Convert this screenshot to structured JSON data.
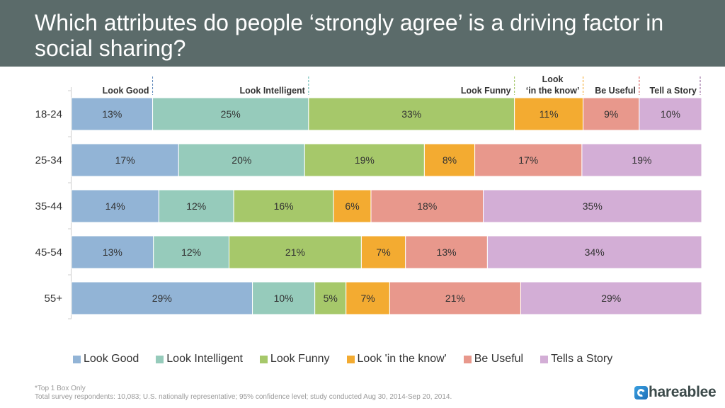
{
  "title": "Which attributes do people ‘strongly agree’ is a driving factor in social sharing?",
  "chart_data": {
    "type": "bar",
    "orientation": "horizontal",
    "stacked": true,
    "categories": [
      "18-24",
      "25-34",
      "35-44",
      "45-54",
      "55+"
    ],
    "series": [
      {
        "name": "Look Good",
        "color": "#92b4d6",
        "values": [
          13,
          17,
          14,
          13,
          29
        ]
      },
      {
        "name": "Look Intelligent",
        "color": "#96cbbb",
        "values": [
          25,
          20,
          12,
          12,
          10
        ]
      },
      {
        "name": "Look Funny",
        "color": "#a6c86a",
        "values": [
          33,
          19,
          16,
          21,
          5
        ]
      },
      {
        "name": "Look 'in the know'",
        "color": "#f3ab31",
        "values": [
          11,
          8,
          6,
          7,
          7
        ]
      },
      {
        "name": "Be Useful",
        "color": "#e8988c",
        "values": [
          9,
          17,
          18,
          13,
          21
        ]
      },
      {
        "name": "Tells a Story",
        "color": "#d3aed6",
        "values": [
          10,
          19,
          35,
          34,
          29
        ]
      }
    ],
    "top_labels": [
      {
        "text": "Look Good",
        "line_color": "#5b86b8"
      },
      {
        "text": "Look Intelligent",
        "line_color": "#5fb5ae"
      },
      {
        "text": "Look Funny",
        "line_color": "#9bc25a"
      },
      {
        "text": "Look\n‘in the know’",
        "line_color": "#f3a21a"
      },
      {
        "text": "Be Useful",
        "line_color": "#d9534f"
      },
      {
        "text": "Tell a Story",
        "line_color": "#8e5b95"
      }
    ],
    "value_suffix": "%",
    "legend_position": "bottom",
    "grid": false
  },
  "legend": [
    {
      "label": "Look Good",
      "color": "#92b4d6"
    },
    {
      "label": "Look Intelligent",
      "color": "#96cbbb"
    },
    {
      "label": "Look Funny",
      "color": "#a6c86a"
    },
    {
      "label": "Look 'in the know'",
      "color": "#f3ab31"
    },
    {
      "label": "Be Useful",
      "color": "#e8988c"
    },
    {
      "label": "Tells a Story",
      "color": "#d3aed6"
    }
  ],
  "footnote": {
    "line1": "*Top 1 Box Only",
    "line2": "Total survey respondents: 10,083; U.S. nationally representative; 95% confidence level; study conducted Aug 30, 2014-Sep 20, 2014."
  },
  "brand": {
    "name": "hareablee"
  }
}
